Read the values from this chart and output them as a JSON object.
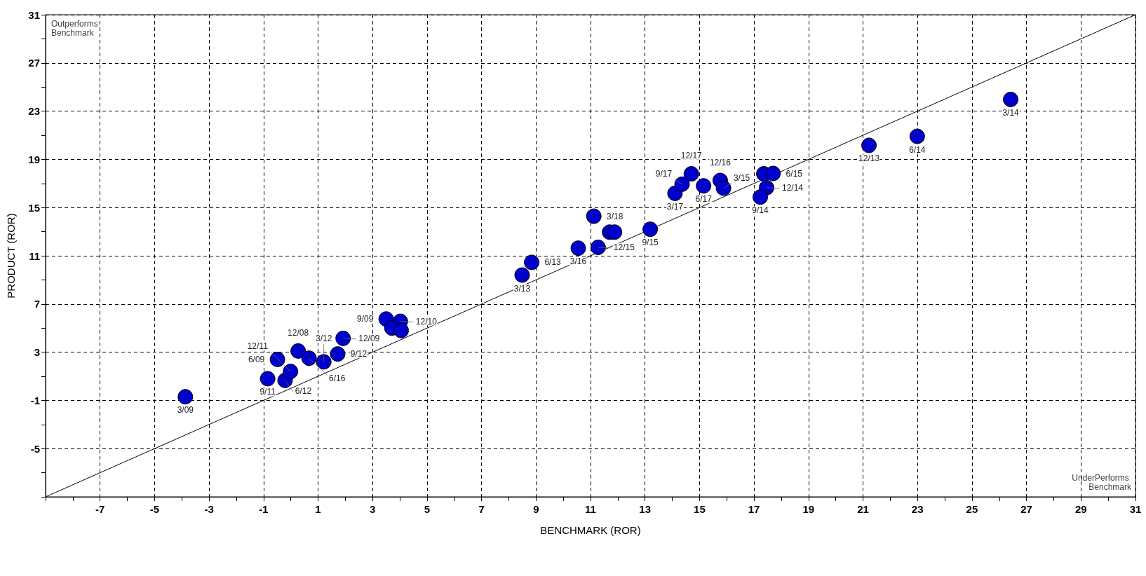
{
  "chart_data": {
    "type": "scatter",
    "xlabel": "BENCHMARK (ROR)",
    "ylabel": "PRODUCT (ROR)",
    "xlim": [
      -9,
      31
    ],
    "ylim": [
      -9,
      31
    ],
    "xticks": [
      {
        "value": -9,
        "label": null
      },
      {
        "value": -8,
        "label": null
      },
      -7,
      {
        "value": -6,
        "label": null
      },
      -5,
      {
        "value": -4,
        "label": null
      },
      -3,
      {
        "value": -2,
        "label": null
      },
      -1,
      {
        "value": 0,
        "label": null
      },
      1,
      {
        "value": 2,
        "label": null
      },
      3,
      {
        "value": 4,
        "label": null
      },
      5,
      {
        "value": 6,
        "label": null
      },
      7,
      {
        "value": 8,
        "label": null
      },
      9,
      {
        "value": 10,
        "label": null
      },
      11,
      {
        "value": 12,
        "label": null
      },
      13,
      {
        "value": 14,
        "label": null
      },
      15,
      {
        "value": 16,
        "label": null
      },
      17,
      {
        "value": 18,
        "label": null
      },
      19,
      {
        "value": 20,
        "label": null
      },
      21,
      {
        "value": 22,
        "label": null
      },
      23,
      {
        "value": 24,
        "label": null
      },
      25,
      {
        "value": 26,
        "label": null
      },
      27,
      {
        "value": 28,
        "label": null
      },
      29,
      {
        "value": 30,
        "label": null
      },
      31
    ],
    "yticks": [
      {
        "value": -9,
        "label": null
      },
      {
        "value": -7,
        "label": null
      },
      -5,
      {
        "value": -3,
        "label": null
      },
      -1,
      {
        "value": 1,
        "label": null
      },
      3,
      {
        "value": 5,
        "label": null
      },
      7,
      {
        "value": 9,
        "label": null
      },
      11,
      {
        "value": 13,
        "label": null
      },
      15,
      {
        "value": 17,
        "label": null
      },
      19,
      {
        "value": 21,
        "label": null
      },
      23,
      {
        "value": 25,
        "label": null
      },
      27,
      {
        "value": 29,
        "label": null
      },
      31
    ],
    "grid": true,
    "marker": "circle",
    "series": [
      {
        "type": "line",
        "color": "#000000",
        "marker": "none",
        "line_style": "solid",
        "x": [
          -9,
          31
        ],
        "values": [
          -9,
          31
        ]
      },
      {
        "type": "scatter",
        "color": "#0000cc",
        "x": [
          -3.87,
          -0.85,
          -0.21,
          -0.01,
          -0.49,
          0.27,
          0.67,
          1.21,
          1.72,
          1.92,
          3.5,
          4.02,
          3.71,
          4.05,
          8.49,
          8.84,
          10.55,
          11.28,
          11.12,
          11.7,
          11.88,
          13.19,
          14.1,
          14.36,
          14.7,
          15.15,
          15.76,
          15.88,
          17.36,
          17.7,
          17.46,
          17.23,
          21.22,
          22.99,
          26.42
        ],
        "values": [
          -0.7,
          0.8,
          0.66,
          1.4,
          2.4,
          3.1,
          2.5,
          2.2,
          2.85,
          4.15,
          5.75,
          5.56,
          5.0,
          4.8,
          9.4,
          10.45,
          11.63,
          11.7,
          14.28,
          12.96,
          12.96,
          13.2,
          16.18,
          16.94,
          17.8,
          16.8,
          17.25,
          16.61,
          17.8,
          17.83,
          16.65,
          15.87,
          20.16,
          20.91,
          23.97
        ]
      }
    ],
    "annotations": [
      "Outperforms Benchmark",
      "UnderPerforms Benchmark",
      {
        "text": "3/09",
        "x": -3.87,
        "y": -0.7
      },
      {
        "text": "9/11",
        "x": -0.85,
        "y": 0.8
      },
      {
        "text": "6/12",
        "x": -0.21,
        "y": 0.66
      },
      {
        "text": "12/11",
        "x": -0.01,
        "y": 1.4
      },
      {
        "text": "6/09",
        "x": -0.49,
        "y": 2.4
      },
      {
        "text": "12/08",
        "x": 0.27,
        "y": 3.1
      },
      {
        "text": "6/16",
        "x": 0.67,
        "y": 2.5
      },
      {
        "text": "3/12",
        "x": 1.21,
        "y": 2.2
      },
      {
        "text": "9/12",
        "x": 1.72,
        "y": 2.85
      },
      {
        "text": "12/09",
        "x": 1.92,
        "y": 4.15
      },
      {
        "text": "9/09",
        "x": 3.5,
        "y": 5.75
      },
      {
        "text": "12/10",
        "x": 4.02,
        "y": 5.56
      },
      {
        "text": "3/13",
        "x": 8.49,
        "y": 9.4
      },
      {
        "text": "6/13",
        "x": 8.84,
        "y": 10.45
      },
      {
        "text": "3/16",
        "x": 10.55,
        "y": 11.63
      },
      {
        "text": "12/15",
        "x": 11.28,
        "y": 11.7
      },
      {
        "text": "3/18",
        "x": 11.12,
        "y": 14.28
      },
      {
        "text": "9/15",
        "x": 13.19,
        "y": 13.2
      },
      {
        "text": "3/17",
        "x": 14.1,
        "y": 16.18
      },
      {
        "text": "9/17",
        "x": 14.36,
        "y": 16.94
      },
      {
        "text": "12/17",
        "x": 14.7,
        "y": 17.8
      },
      {
        "text": "6/17",
        "x": 15.15,
        "y": 16.8
      },
      {
        "text": "12/16",
        "x": 15.76,
        "y": 17.25
      },
      {
        "text": "3/15",
        "x": 15.88,
        "y": 16.61
      },
      {
        "text": "6/15",
        "x": 17.7,
        "y": 17.83
      },
      {
        "text": "12/14",
        "x": 17.46,
        "y": 16.65
      },
      {
        "text": "9/14",
        "x": 17.23,
        "y": 15.87
      },
      {
        "text": "12/13",
        "x": 21.22,
        "y": 20.16
      },
      {
        "text": "6/14",
        "x": 22.99,
        "y": 20.91
      },
      {
        "text": "3/14",
        "x": 26.42,
        "y": 23.97
      }
    ]
  }
}
